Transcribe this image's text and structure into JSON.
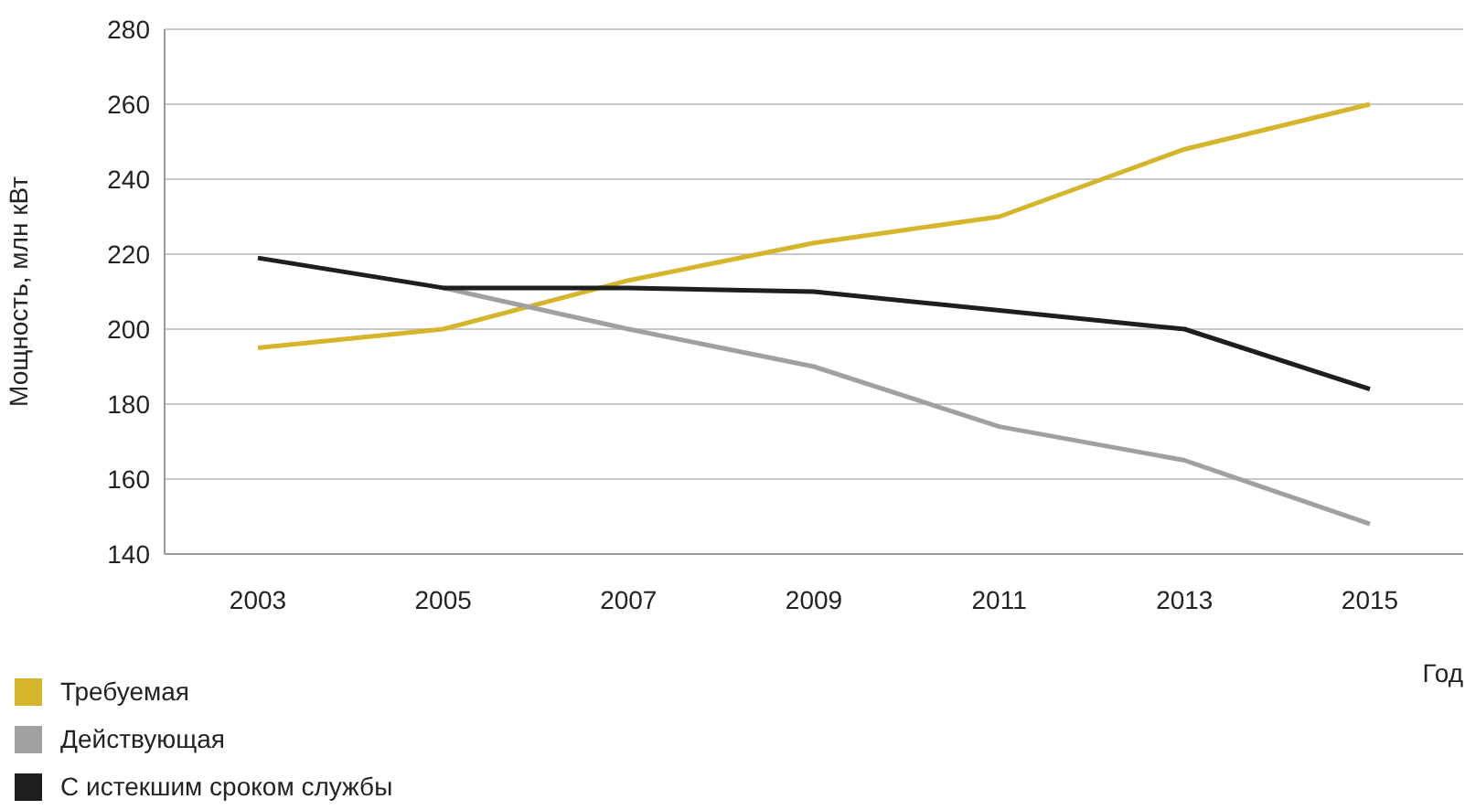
{
  "chart_data": {
    "type": "line",
    "xlabel": "Год",
    "ylabel": "Мощность, млн кВт",
    "categories": [
      "2003",
      "2005",
      "2007",
      "2009",
      "2011",
      "2013",
      "2015"
    ],
    "series": [
      {
        "name": "Требуемая",
        "color": "#d4b52c",
        "values": [
          195,
          200,
          213,
          223,
          230,
          248,
          260
        ]
      },
      {
        "name": "Действующая",
        "color": "#a0a0a0",
        "values": [
          null,
          211,
          200,
          190,
          174,
          165,
          148
        ]
      },
      {
        "name": "С истекшим сроком службы",
        "color": "#1e1e1e",
        "values": [
          219,
          211,
          211,
          210,
          205,
          200,
          184
        ]
      }
    ],
    "ylim": [
      140,
      280
    ],
    "yticks": [
      140,
      160,
      180,
      200,
      220,
      240,
      260,
      280
    ],
    "grid": "y",
    "legend": "bottom left",
    "marker": "none",
    "line_style": "solid"
  }
}
